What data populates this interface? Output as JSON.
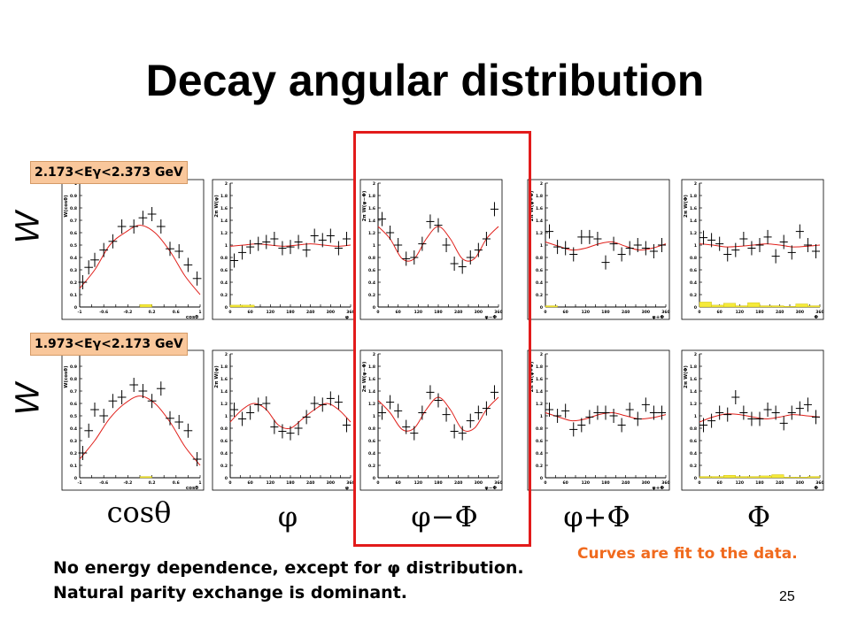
{
  "slide": {
    "title": "Decay angular distribution",
    "page_number": "25",
    "energy_bins": [
      "2.173<Eγ<2.373 GeV",
      "1.973<Eγ<2.173 GeV"
    ],
    "row_label": "W",
    "column_labels": [
      "cosθ",
      "φ",
      "φ−Φ",
      "φ+Φ",
      "Φ"
    ],
    "conclusion_lines": [
      "No energy dependence, except for φ distribution.",
      "Natural parity exchange is dominant."
    ],
    "fit_note": "Curves are fit to the data.",
    "colors": {
      "fit_curve": "#e0201b",
      "highlight_box": "#e21b1b",
      "energy_box_fill": "#f9c79b",
      "note_text": "#f06a1e",
      "background_hist": "#f5ea3a"
    }
  },
  "chart_data": [
    {
      "type": "scatter",
      "row": 0,
      "column": 0,
      "ylabel": "W(cosθ)",
      "xlabel": "cosθ",
      "xlim": [
        -1,
        1
      ],
      "ylim": [
        0,
        1
      ],
      "x": [
        -0.95,
        -0.85,
        -0.75,
        -0.6,
        -0.45,
        -0.3,
        -0.1,
        0.05,
        0.2,
        0.35,
        0.5,
        0.65,
        0.8,
        0.95
      ],
      "values": [
        0.2,
        0.32,
        0.38,
        0.46,
        0.53,
        0.65,
        0.65,
        0.72,
        0.75,
        0.65,
        0.47,
        0.45,
        0.34,
        0.23
      ],
      "fit": [
        0.15,
        0.3,
        0.5,
        0.6,
        0.66,
        0.6,
        0.45,
        0.25,
        0.1
      ],
      "background": [
        0,
        0,
        0,
        0,
        0,
        0.02,
        0,
        0,
        0,
        0
      ]
    },
    {
      "type": "scatter",
      "row": 0,
      "column": 1,
      "ylabel": "2π W(φ)",
      "xlabel": "φ",
      "xlim": [
        0,
        360
      ],
      "ylim": [
        0,
        2
      ],
      "x": [
        12,
        36,
        60,
        84,
        108,
        132,
        156,
        180,
        204,
        228,
        252,
        276,
        300,
        324,
        348
      ],
      "values": [
        0.75,
        0.88,
        0.97,
        1.02,
        1.05,
        1.1,
        0.95,
        0.97,
        1.05,
        0.92,
        1.15,
        1.08,
        1.15,
        0.95,
        1.1
      ],
      "fit": [
        0.98,
        1,
        1.02,
        1,
        0.98,
        1,
        1.02,
        1,
        0.98,
        1
      ],
      "background": [
        0.03,
        0.03,
        0,
        0,
        0,
        0,
        0,
        0,
        0,
        0
      ]
    },
    {
      "type": "scatter",
      "row": 0,
      "column": 2,
      "ylabel": "2π W(φ−Φ)",
      "xlabel": "φ−Φ",
      "xlim": [
        0,
        360
      ],
      "ylim": [
        0,
        2
      ],
      "x": [
        12,
        36,
        60,
        84,
        108,
        132,
        156,
        180,
        204,
        228,
        252,
        276,
        300,
        324,
        348
      ],
      "values": [
        1.42,
        1.2,
        1.0,
        0.78,
        0.8,
        1.02,
        1.38,
        1.32,
        1.0,
        0.7,
        0.65,
        0.8,
        0.92,
        1.1,
        1.58
      ],
      "fit": [
        1.3,
        1.1,
        0.78,
        0.78,
        1.1,
        1.3,
        1.1,
        0.78,
        0.78,
        1.1,
        1.3
      ],
      "background": [
        0,
        0,
        0,
        0,
        0,
        0,
        0,
        0,
        0,
        0
      ]
    },
    {
      "type": "scatter",
      "row": 0,
      "column": 3,
      "ylabel": "2π W(φ+Φ)",
      "xlabel": "φ+Φ",
      "xlim": [
        0,
        360
      ],
      "ylim": [
        0,
        2
      ],
      "x": [
        12,
        36,
        60,
        84,
        108,
        132,
        156,
        180,
        204,
        228,
        252,
        276,
        300,
        324,
        348
      ],
      "values": [
        1.22,
        0.97,
        0.95,
        0.85,
        1.13,
        1.13,
        1.1,
        0.72,
        1.02,
        0.85,
        0.95,
        1.0,
        0.95,
        0.9,
        1.0
      ],
      "fit": [
        1.05,
        0.98,
        0.92,
        0.95,
        1.02,
        1.05,
        0.98,
        0.92,
        0.95,
        1.02
      ],
      "background": [
        0.02,
        0,
        0,
        0,
        0,
        0,
        0,
        0,
        0,
        0
      ]
    },
    {
      "type": "scatter",
      "row": 0,
      "column": 4,
      "ylabel": "2π W(Φ)",
      "xlabel": "Φ",
      "xlim": [
        0,
        360
      ],
      "ylim": [
        0,
        2
      ],
      "x": [
        12,
        36,
        60,
        84,
        108,
        132,
        156,
        180,
        204,
        228,
        252,
        276,
        300,
        324,
        348
      ],
      "values": [
        1.12,
        1.08,
        1.02,
        0.85,
        0.92,
        1.1,
        0.95,
        1.0,
        1.13,
        0.82,
        1.05,
        0.88,
        1.22,
        1.0,
        0.9
      ],
      "fit": [
        1.02,
        1,
        0.97,
        0.98,
        1,
        1.02,
        1,
        0.97,
        0.98,
        1
      ],
      "background": [
        0.08,
        0.03,
        0.06,
        0.02,
        0.07,
        0.02,
        0.02,
        0.01,
        0.05,
        0.02
      ]
    },
    {
      "type": "scatter",
      "row": 1,
      "column": 0,
      "ylabel": "W(cosθ)",
      "xlabel": "cosθ",
      "xlim": [
        -1,
        1
      ],
      "ylim": [
        0,
        1
      ],
      "x": [
        -0.95,
        -0.85,
        -0.75,
        -0.6,
        -0.45,
        -0.3,
        -0.1,
        0.05,
        0.2,
        0.35,
        0.5,
        0.65,
        0.8,
        0.95
      ],
      "values": [
        0.2,
        0.38,
        0.55,
        0.5,
        0.62,
        0.65,
        0.75,
        0.7,
        0.62,
        0.72,
        0.48,
        0.45,
        0.38,
        0.15
      ],
      "fit": [
        0.15,
        0.3,
        0.48,
        0.6,
        0.66,
        0.6,
        0.45,
        0.25,
        0.1
      ],
      "background": [
        0,
        0,
        0,
        0,
        0,
        0.01,
        0,
        0,
        0,
        0
      ]
    },
    {
      "type": "scatter",
      "row": 1,
      "column": 1,
      "ylabel": "2π W(φ)",
      "xlabel": "φ",
      "xlim": [
        0,
        360
      ],
      "ylim": [
        0,
        2
      ],
      "x": [
        12,
        36,
        60,
        84,
        108,
        132,
        156,
        180,
        204,
        228,
        252,
        276,
        300,
        324,
        348
      ],
      "values": [
        1.1,
        0.95,
        1.05,
        1.18,
        1.2,
        0.82,
        0.75,
        0.72,
        0.8,
        0.98,
        1.2,
        1.18,
        1.28,
        1.22,
        0.85
      ],
      "fit": [
        0.9,
        1.1,
        1.2,
        1.1,
        0.85,
        0.8,
        0.95,
        1.1,
        1.2,
        1.1,
        0.9
      ],
      "background": [
        0,
        0,
        0,
        0,
        0,
        0,
        0,
        0,
        0,
        0
      ]
    },
    {
      "type": "scatter",
      "row": 1,
      "column": 2,
      "ylabel": "2π W(φ−Φ)",
      "xlabel": "φ−Φ",
      "xlim": [
        0,
        360
      ],
      "ylim": [
        0,
        2
      ],
      "x": [
        12,
        36,
        60,
        84,
        108,
        132,
        156,
        180,
        204,
        228,
        252,
        276,
        300,
        324,
        348
      ],
      "values": [
        1.05,
        1.22,
        1.08,
        0.82,
        0.72,
        1.05,
        1.38,
        1.25,
        1.02,
        0.75,
        0.72,
        0.92,
        1.05,
        1.12,
        1.38
      ],
      "fit": [
        1.25,
        1.05,
        0.78,
        0.8,
        1.1,
        1.3,
        1.1,
        0.78,
        0.8,
        1.1,
        1.3
      ],
      "background": [
        0,
        0,
        0,
        0,
        0,
        0,
        0,
        0,
        0,
        0
      ]
    },
    {
      "type": "scatter",
      "row": 1,
      "column": 3,
      "ylabel": "2π W(φ+Φ)",
      "xlabel": "φ+Φ",
      "xlim": [
        0,
        360
      ],
      "ylim": [
        0,
        2
      ],
      "x": [
        12,
        36,
        60,
        84,
        108,
        132,
        156,
        180,
        204,
        228,
        252,
        276,
        300,
        324,
        348
      ],
      "values": [
        1.1,
        1.0,
        1.08,
        0.78,
        0.85,
        0.98,
        1.05,
        1.05,
        1.0,
        0.85,
        1.1,
        0.95,
        1.18,
        1.05,
        1.05
      ],
      "fit": [
        1.05,
        0.98,
        0.92,
        0.95,
        1.02,
        1.05,
        1.0,
        0.95,
        0.97,
        1.02
      ],
      "background": [
        0,
        0,
        0,
        0,
        0,
        0,
        0,
        0,
        0,
        0
      ]
    },
    {
      "type": "scatter",
      "row": 1,
      "column": 4,
      "ylabel": "2π W(Φ)",
      "xlabel": "Φ",
      "xlim": [
        0,
        360
      ],
      "ylim": [
        0,
        2
      ],
      "x": [
        12,
        36,
        60,
        84,
        108,
        132,
        156,
        180,
        204,
        228,
        252,
        276,
        300,
        324,
        348
      ],
      "values": [
        0.85,
        0.92,
        1.05,
        1.02,
        1.3,
        1.05,
        0.95,
        0.95,
        1.1,
        1.05,
        0.88,
        1.05,
        1.12,
        1.18,
        0.98
      ],
      "fit": [
        0.9,
        0.98,
        1.03,
        1.02,
        0.98,
        0.95,
        0.98,
        1.02,
        1.0,
        0.98
      ],
      "background": [
        0.02,
        0.02,
        0.04,
        0.02,
        0.02,
        0.03,
        0.05,
        0.01,
        0.01,
        0.02
      ]
    }
  ]
}
